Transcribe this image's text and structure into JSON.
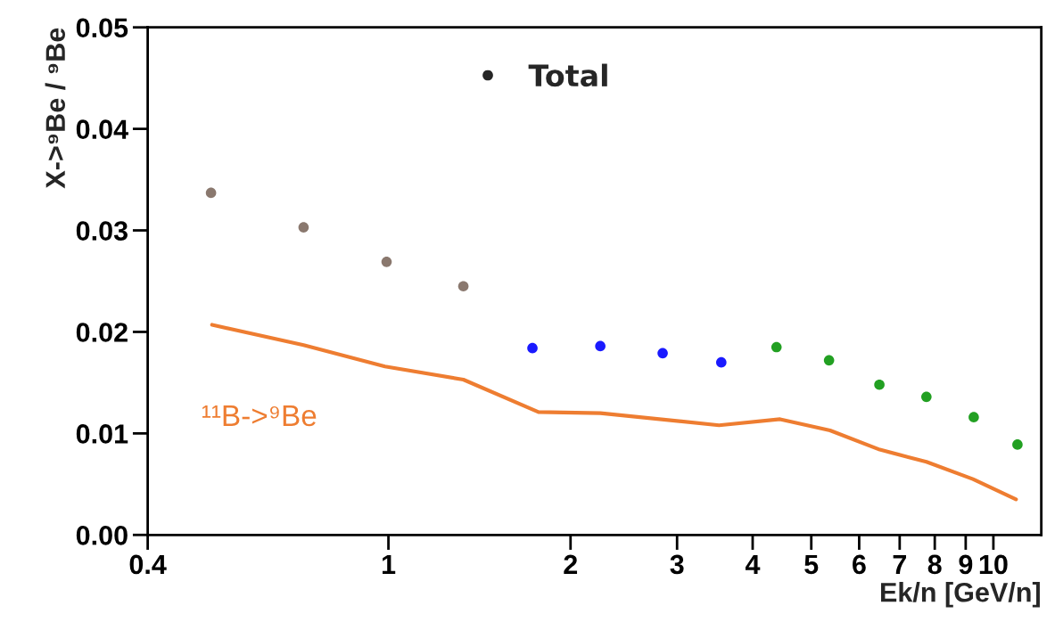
{
  "chart_data": {
    "type": "scatter",
    "xlabel": "Ek/n [GeV/n]",
    "ylabel": "X->⁹Be / ⁹Be",
    "log": "x",
    "marker": "circle",
    "xlim": [
      0.4,
      12
    ],
    "xticks": [
      {
        "value": 0.4,
        "label": "0.4"
      },
      1,
      2,
      3,
      4,
      5,
      6,
      7,
      8,
      9,
      10
    ],
    "ylim": [
      0,
      0.05
    ],
    "yticks": [
      {
        "value": 0,
        "label": "0.00"
      },
      {
        "value": 0.01,
        "label": "0.01"
      },
      {
        "value": 0.02,
        "label": "0.02"
      },
      {
        "value": 0.03,
        "label": "0.03"
      },
      {
        "value": 0.04,
        "label": "0.04"
      },
      {
        "value": 0.05,
        "label": "0.05"
      }
    ],
    "annotations": [
      "•   Total"
    ],
    "series": [
      {
        "color": "#8a786e",
        "x": [
          0.509,
          0.724,
          0.993,
          1.33
        ],
        "values": [
          0.0337,
          0.0303,
          0.0269,
          0.0245
        ]
      },
      {
        "color": "#1a1aff",
        "x": [
          1.73,
          2.24,
          2.84,
          3.55
        ],
        "values": [
          0.0184,
          0.0186,
          0.0179,
          0.017
        ]
      },
      {
        "color": "#22a022",
        "x": [
          4.38,
          5.35,
          6.48,
          7.75,
          9.28,
          10.96
        ],
        "values": [
          0.0185,
          0.0172,
          0.0148,
          0.0136,
          0.0116,
          0.0089
        ]
      },
      {
        "type": "line",
        "name": "¹¹B->⁹Be",
        "color": "#ee7d31",
        "marker": "none",
        "x": [
          0.511,
          0.724,
          0.987,
          1.33,
          1.77,
          2.24,
          3.52,
          4.44,
          5.37,
          6.49,
          7.75,
          9.25,
          10.9
        ],
        "values": [
          0.0207,
          0.0187,
          0.0166,
          0.0153,
          0.0121,
          0.012,
          0.0108,
          0.0114,
          0.0103,
          0.0084,
          0.0072,
          0.0055,
          0.0035
        ]
      }
    ]
  }
}
